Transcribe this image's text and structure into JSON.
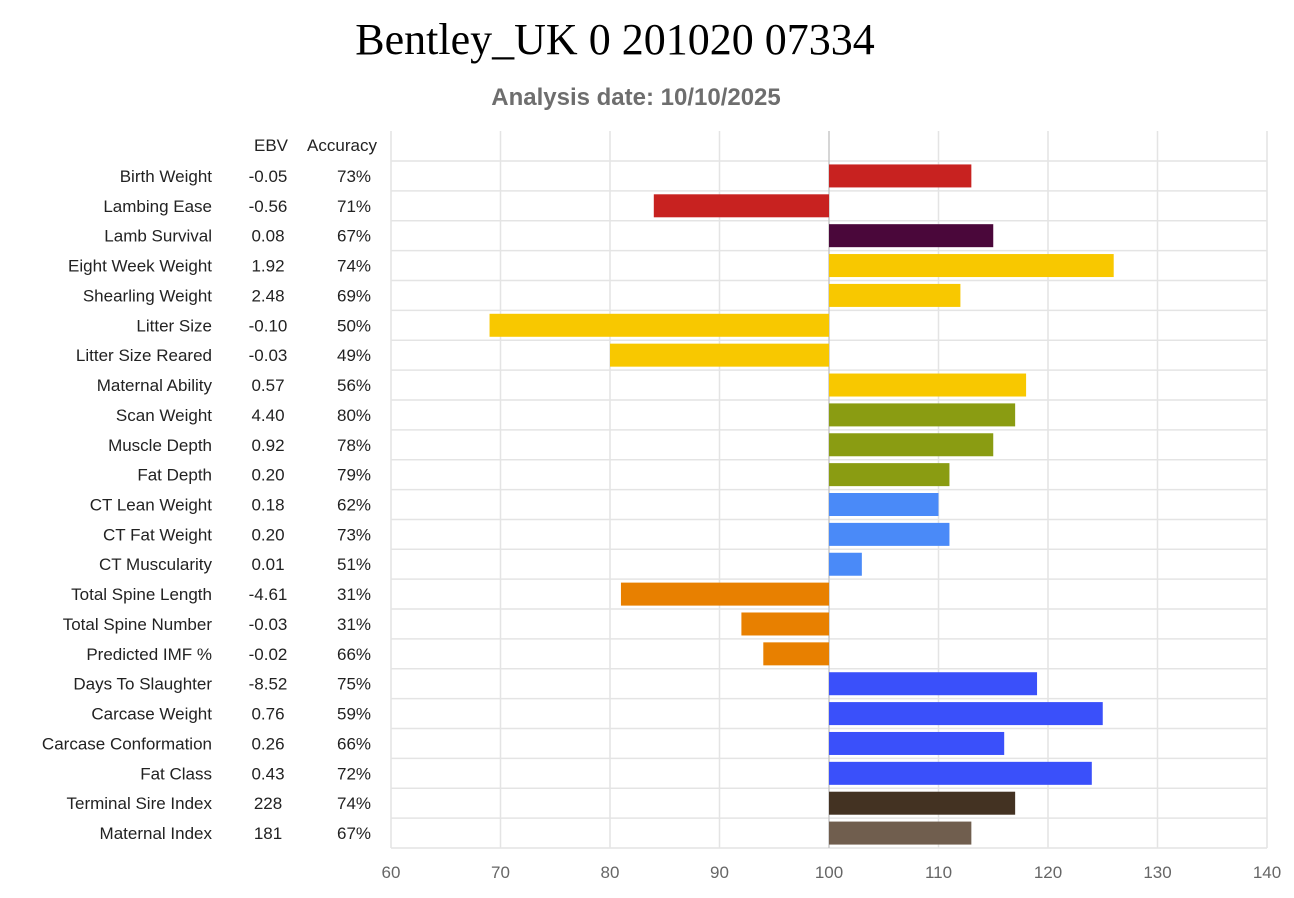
{
  "chart_data": {
    "type": "bar",
    "orientation": "horizontal",
    "title": "Bentley_UK 0 201020 07334",
    "subtitle": "Analysis date: 10/10/2025",
    "column_headers": {
      "ebv": "EBV",
      "accuracy": "Accuracy"
    },
    "baseline": 100,
    "xlim": [
      60,
      140
    ],
    "xticks": [
      60,
      70,
      80,
      90,
      100,
      110,
      120,
      130,
      140
    ],
    "grid": true,
    "rows": [
      {
        "label": "Birth Weight",
        "ebv": "-0.05",
        "accuracy": "73%",
        "value": 113,
        "color": "#c82220"
      },
      {
        "label": "Lambing Ease",
        "ebv": "-0.56",
        "accuracy": "71%",
        "value": 84,
        "color": "#c82220"
      },
      {
        "label": "Lamb Survival",
        "ebv": "0.08",
        "accuracy": "67%",
        "value": 115,
        "color": "#4a073a"
      },
      {
        "label": "Eight Week Weight",
        "ebv": "1.92",
        "accuracy": "74%",
        "value": 126,
        "color": "#f8c800"
      },
      {
        "label": "Shearling Weight",
        "ebv": "2.48",
        "accuracy": "69%",
        "value": 112,
        "color": "#f8c800"
      },
      {
        "label": "Litter Size",
        "ebv": "-0.10",
        "accuracy": "50%",
        "value": 69,
        "color": "#f8c800"
      },
      {
        "label": "Litter Size Reared",
        "ebv": "-0.03",
        "accuracy": "49%",
        "value": 80,
        "color": "#f8c800"
      },
      {
        "label": "Maternal Ability",
        "ebv": "0.57",
        "accuracy": "56%",
        "value": 118,
        "color": "#f8c800"
      },
      {
        "label": "Scan Weight",
        "ebv": "4.40",
        "accuracy": "80%",
        "value": 117,
        "color": "#8a9c12"
      },
      {
        "label": "Muscle Depth",
        "ebv": "0.92",
        "accuracy": "78%",
        "value": 115,
        "color": "#8a9c12"
      },
      {
        "label": "Fat Depth",
        "ebv": "0.20",
        "accuracy": "79%",
        "value": 111,
        "color": "#8a9c12"
      },
      {
        "label": "CT Lean Weight",
        "ebv": "0.18",
        "accuracy": "62%",
        "value": 110,
        "color": "#4a8af8"
      },
      {
        "label": "CT Fat Weight",
        "ebv": "0.20",
        "accuracy": "73%",
        "value": 111,
        "color": "#4a8af8"
      },
      {
        "label": "CT Muscularity",
        "ebv": "0.01",
        "accuracy": "51%",
        "value": 103,
        "color": "#4a8af8"
      },
      {
        "label": "Total Spine Length",
        "ebv": "-4.61",
        "accuracy": "31%",
        "value": 81,
        "color": "#e88000"
      },
      {
        "label": "Total Spine Number",
        "ebv": "-0.03",
        "accuracy": "31%",
        "value": 92,
        "color": "#e88000"
      },
      {
        "label": "Predicted IMF %",
        "ebv": "-0.02",
        "accuracy": "66%",
        "value": 94,
        "color": "#e88000"
      },
      {
        "label": "Days To Slaughter",
        "ebv": "-8.52",
        "accuracy": "75%",
        "value": 119,
        "color": "#3a50fa"
      },
      {
        "label": "Carcase Weight",
        "ebv": "0.76",
        "accuracy": "59%",
        "value": 125,
        "color": "#3a50fa"
      },
      {
        "label": "Carcase Conformation",
        "ebv": "0.26",
        "accuracy": "66%",
        "value": 116,
        "color": "#3a50fa"
      },
      {
        "label": "Fat Class",
        "ebv": "0.43",
        "accuracy": "72%",
        "value": 124,
        "color": "#3a50fa"
      },
      {
        "label": "Terminal Sire Index",
        "ebv": "228",
        "accuracy": "74%",
        "value": 117,
        "color": "#433222"
      },
      {
        "label": "Maternal Index",
        "ebv": "181",
        "accuracy": "67%",
        "value": 113,
        "color": "#705e4e"
      }
    ]
  }
}
